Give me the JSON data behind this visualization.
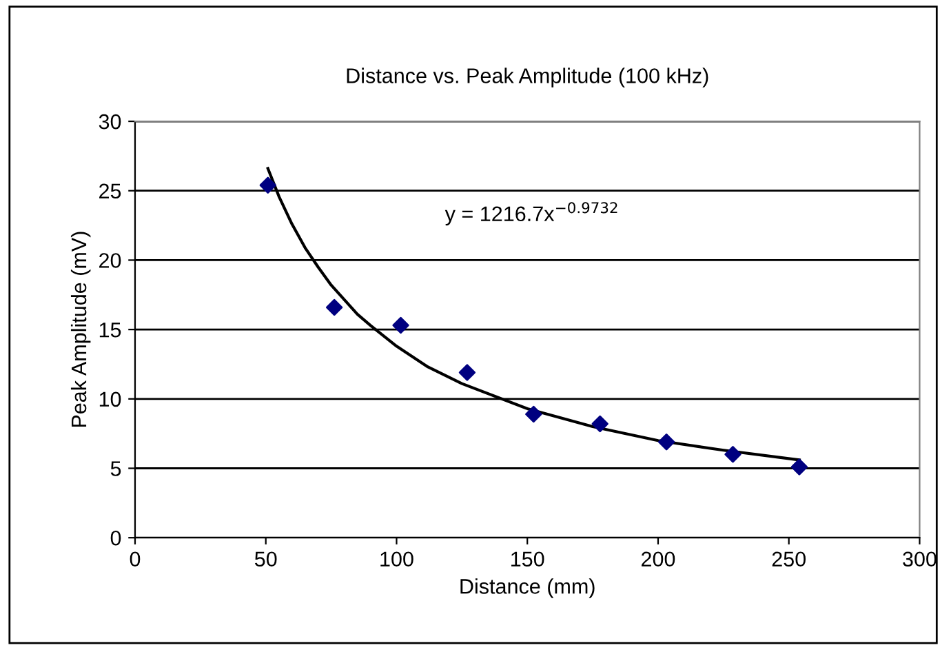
{
  "chart_data": {
    "type": "scatter",
    "title": "Distance vs. Peak Amplitude (100 kHz)",
    "xlabel": "Distance (mm)",
    "ylabel": "Peak Amplitude (mV)",
    "series": [
      {
        "color": "#000080",
        "marker": "diamond",
        "x": [
          50.8,
          76.2,
          101.6,
          127,
          152.4,
          177.8,
          203.2,
          228.6,
          254
        ],
        "values": [
          25.4,
          16.6,
          15.3,
          11.9,
          8.9,
          8.2,
          6.9,
          6.0,
          5.1
        ]
      },
      {
        "type": "line",
        "color": "#000000",
        "marker": "none",
        "line_style": "solid",
        "x": [
          50.8,
          55,
          60,
          65,
          70,
          75,
          85,
          90,
          100,
          112,
          125,
          150,
          175,
          200,
          225,
          254
        ],
        "values": [
          26.6,
          24.6,
          22.6,
          20.9,
          19.5,
          18.2,
          16.1,
          15.3,
          13.8,
          12.3,
          11.1,
          9.3,
          8.0,
          7.0,
          6.3,
          5.6
        ]
      }
    ],
    "annotations": [
      "y = 1216.7x$^{−0.9732}$"
    ],
    "xlim": [
      0,
      300
    ],
    "xticks": [
      0,
      50,
      100,
      150,
      200,
      250,
      300
    ],
    "ylim": [
      0,
      30
    ],
    "yticks": [
      0,
      5,
      10,
      15,
      20,
      25,
      30
    ],
    "grid": "y",
    "legend": false
  }
}
